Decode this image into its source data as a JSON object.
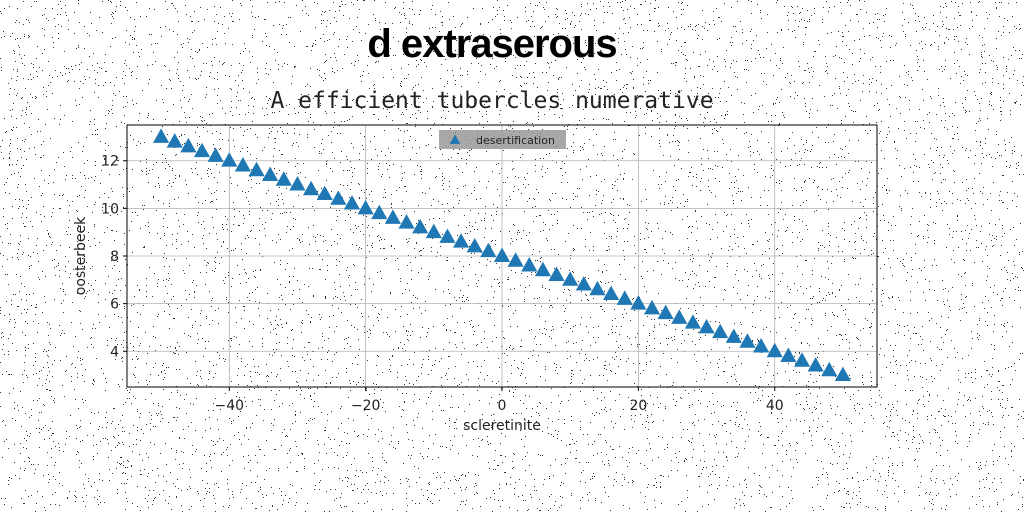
{
  "title": "d extraserous",
  "subtitle": "A efficient tubercles numerative",
  "chart_data": {
    "type": "scatter",
    "xlabel": "scleretinite",
    "ylabel": "oosterbeek",
    "xlim": [
      -55,
      55
    ],
    "ylim": [
      2.5,
      13.5
    ],
    "x_ticks": [
      -40,
      -20,
      0,
      20,
      40
    ],
    "y_ticks": [
      4,
      6,
      8,
      10,
      12
    ],
    "grid": true,
    "legend_position": "top-center",
    "marker": "triangle-up",
    "series": [
      {
        "name": "desertification",
        "color": "#1f77b4",
        "x": [
          -50,
          -48,
          -46,
          -44,
          -42,
          -40,
          -38,
          -36,
          -34,
          -32,
          -30,
          -28,
          -26,
          -24,
          -22,
          -20,
          -18,
          -16,
          -14,
          -12,
          -10,
          -8,
          -6,
          -4,
          -2,
          0,
          2,
          4,
          6,
          8,
          10,
          12,
          14,
          16,
          18,
          20,
          22,
          24,
          26,
          28,
          30,
          32,
          34,
          36,
          38,
          40,
          42,
          44,
          46,
          48,
          50
        ],
        "y": [
          13.0,
          12.8,
          12.6,
          12.4,
          12.2,
          12.0,
          11.8,
          11.6,
          11.4,
          11.2,
          11.0,
          10.8,
          10.6,
          10.4,
          10.2,
          10.0,
          9.8,
          9.6,
          9.4,
          9.2,
          9.0,
          8.8,
          8.6,
          8.4,
          8.2,
          8.0,
          7.8,
          7.6,
          7.4,
          7.2,
          7.0,
          6.8,
          6.6,
          6.4,
          6.2,
          6.0,
          5.8,
          5.6,
          5.4,
          5.2,
          5.0,
          4.8,
          4.6,
          4.4,
          4.2,
          4.0,
          3.8,
          3.6,
          3.4,
          3.2,
          3.0
        ]
      }
    ]
  }
}
